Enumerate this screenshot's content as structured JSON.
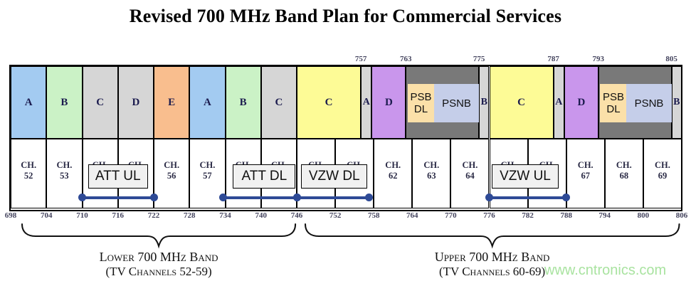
{
  "watermark": "www.cntronics.com",
  "colors": {
    "blue": "#A3CBF1",
    "green": "#CBF2C6",
    "gray": "#D6D6D6",
    "orange": "#F9BE8E",
    "yellow": "#FDFB96",
    "purple": "#C996EC",
    "dark_gray": "#797979",
    "tan": "#FBE0A9",
    "periwinkle": "#C5CEE9",
    "line_blue": "#2E4A96",
    "watermark_green": "#A9E3A0"
  },
  "chart_data": {
    "type": "band-plan-diagram",
    "title": "Revised 700 MHz Band Plan for Commercial Services",
    "freq_axis_mhz": {
      "start": 698,
      "end": 806,
      "tick_step": 6
    },
    "top_boundary_labels": [
      {
        "text": "757",
        "d": 756.0
      },
      {
        "text": "763",
        "d": 763.0
      },
      {
        "text": "775",
        "d": 774.4
      },
      {
        "text": "787",
        "d": 786.0
      },
      {
        "text": "793",
        "d": 793.0
      },
      {
        "text": "805",
        "d": 804.4
      }
    ],
    "bottom_tick_labels": [
      "698",
      "704",
      "710",
      "716",
      "722",
      "728",
      "734",
      "740",
      "746",
      "752",
      "758",
      "764",
      "770",
      "776",
      "782",
      "788",
      "794",
      "800",
      "806"
    ],
    "blocks": [
      {
        "label": "A",
        "f0": 698,
        "f1": 704,
        "color": "blue"
      },
      {
        "label": "B",
        "f0": 704,
        "f1": 710,
        "color": "green"
      },
      {
        "label": "C",
        "f0": 710,
        "f1": 716,
        "color": "gray"
      },
      {
        "label": "D",
        "f0": 716,
        "f1": 722,
        "color": "gray"
      },
      {
        "label": "E",
        "f0": 722,
        "f1": 728,
        "color": "orange"
      },
      {
        "label": "A",
        "f0": 728,
        "f1": 734,
        "color": "blue"
      },
      {
        "label": "B",
        "f0": 734,
        "f1": 740,
        "color": "green"
      },
      {
        "label": "C",
        "f0": 740,
        "f1": 746,
        "color": "gray"
      },
      {
        "label": "C",
        "f0": 746,
        "f1": 757,
        "d1": 756.0,
        "color": "yellow"
      },
      {
        "label": "A",
        "f0": 757,
        "f1": 758,
        "d0": 756.0,
        "d1": 757.7,
        "color": "gray"
      },
      {
        "label": "D",
        "f0": 758,
        "f1": 763,
        "d0": 757.7,
        "color": "purple"
      },
      {
        "label": "",
        "f0": 763,
        "f1": 775,
        "d1": 774.4,
        "color": "dark_gray",
        "name": "public-safety-block-1"
      },
      {
        "label": "B",
        "f0": 775,
        "f1": 776,
        "d0": 774.4,
        "color": "gray"
      },
      {
        "label": "C",
        "f0": 776,
        "f1": 787,
        "d1": 786.0,
        "color": "yellow"
      },
      {
        "label": "A",
        "f0": 787,
        "f1": 788,
        "d0": 786.0,
        "d1": 787.7,
        "color": "gray"
      },
      {
        "label": "D",
        "f0": 788,
        "f1": 793,
        "d0": 787.7,
        "color": "purple"
      },
      {
        "label": "",
        "f0": 793,
        "f1": 805,
        "d1": 804.4,
        "color": "dark_gray",
        "name": "public-safety-block-2"
      },
      {
        "label": "B",
        "f0": 805,
        "f1": 806,
        "d0": 804.4,
        "color": "gray"
      }
    ],
    "sub_blocks": [
      {
        "lines": [
          "PSB",
          "DL"
        ],
        "d0": 763.3,
        "d1": 767.4,
        "color": "tan",
        "name": "psb-dl-block-1"
      },
      {
        "lines": [
          "PSNB"
        ],
        "d0": 767.4,
        "d1": 774.4,
        "color": "periwinkle",
        "name": "psnb-block-1"
      },
      {
        "lines": [
          "PSB",
          "DL"
        ],
        "d0": 793.3,
        "d1": 797.4,
        "color": "tan",
        "name": "psb-dl-block-2"
      },
      {
        "lines": [
          "PSNB"
        ],
        "d0": 797.4,
        "d1": 804.4,
        "color": "periwinkle",
        "name": "psnb-block-2"
      }
    ],
    "tv_channels": [
      "52",
      "53",
      "54",
      "55",
      "56",
      "57",
      "58",
      "59",
      "60",
      "61",
      "62",
      "63",
      "64",
      "65",
      "66",
      "67",
      "68",
      "69"
    ],
    "channel_prefix": "CH.",
    "operator_labels": [
      {
        "label": "ATT UL",
        "f0": 710,
        "f1": 722,
        "box_d0": 711.0,
        "box_d1": 721.0
      },
      {
        "label": "ATT DL",
        "f0": 734,
        "f1": 746,
        "box_d0": 735.3,
        "box_d1": 745.8,
        "line_d0": 733.6
      },
      {
        "label": "VZW DL",
        "f0": 746,
        "f1": 758,
        "box_d0": 746.7,
        "box_d1": 757.0,
        "line_d1": 757.3
      },
      {
        "label": "VZW UL",
        "f0": 776,
        "f1": 788,
        "box_d0": 776.4,
        "box_d1": 786.8
      }
    ],
    "braces": [
      {
        "label": "Lower 700 MHz Band",
        "sublabel": "(TV Channels 52-59)",
        "f0": 698,
        "f1": 746,
        "d0": 699.8,
        "d1": 745.9,
        "name": "lower-band-brace"
      },
      {
        "label": "Upper 700 MHz Band",
        "sublabel": "(TV Channels 60-69)",
        "f0": 746,
        "f1": 806,
        "d0": 747.2,
        "d1": 805.7,
        "name": "upper-band-brace"
      }
    ]
  }
}
